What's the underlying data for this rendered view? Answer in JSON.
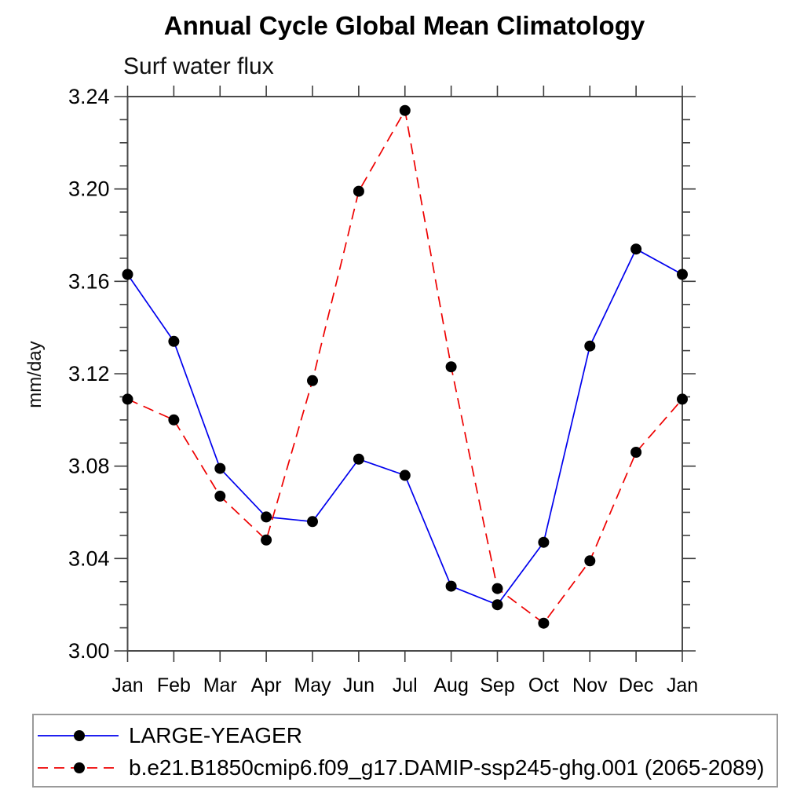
{
  "page": {
    "title": "Annual Cycle Global Mean Climatology",
    "subtitle": "Surf water flux",
    "ylabel": "mm/day"
  },
  "legend": {
    "entries": [
      {
        "label": "LARGE-YEAGER",
        "color": "#0000ee",
        "style": "solid",
        "marker": "black-dot"
      },
      {
        "label": "b.e21.B1850cmip6.f09_g17.DAMIP-ssp245-ghg.001 (2065-2089)",
        "color": "#ee0000",
        "style": "dashed",
        "marker": "black-dot"
      }
    ]
  },
  "chart_data": {
    "type": "line",
    "title": "Annual Cycle Global Mean Climatology",
    "subtitle": "Surf water flux",
    "xlabel": "",
    "ylabel": "mm/day",
    "categories": [
      "Jan",
      "Feb",
      "Mar",
      "Apr",
      "May",
      "Jun",
      "Jul",
      "Aug",
      "Sep",
      "Oct",
      "Nov",
      "Dec",
      "Jan"
    ],
    "ylim": [
      3.0,
      3.24
    ],
    "ytick_major": 0.04,
    "ytick_minor": 0.01,
    "grid": false,
    "legend_position": "bottom-outside-box",
    "marker": "filled-circle-black",
    "series": [
      {
        "name": "LARGE-YEAGER",
        "color": "#0000ee",
        "style": "solid",
        "values": [
          3.163,
          3.134,
          3.079,
          3.058,
          3.056,
          3.083,
          3.076,
          3.028,
          3.02,
          3.047,
          3.132,
          3.174,
          3.163
        ]
      },
      {
        "name": "b.e21.B1850cmip6.f09_g17.DAMIP-ssp245-ghg.001 (2065-2089)",
        "color": "#ee0000",
        "style": "dashed",
        "values": [
          3.109,
          3.1,
          3.067,
          3.048,
          3.117,
          3.199,
          3.234,
          3.123,
          3.027,
          3.012,
          3.039,
          3.086,
          3.109
        ]
      }
    ]
  }
}
